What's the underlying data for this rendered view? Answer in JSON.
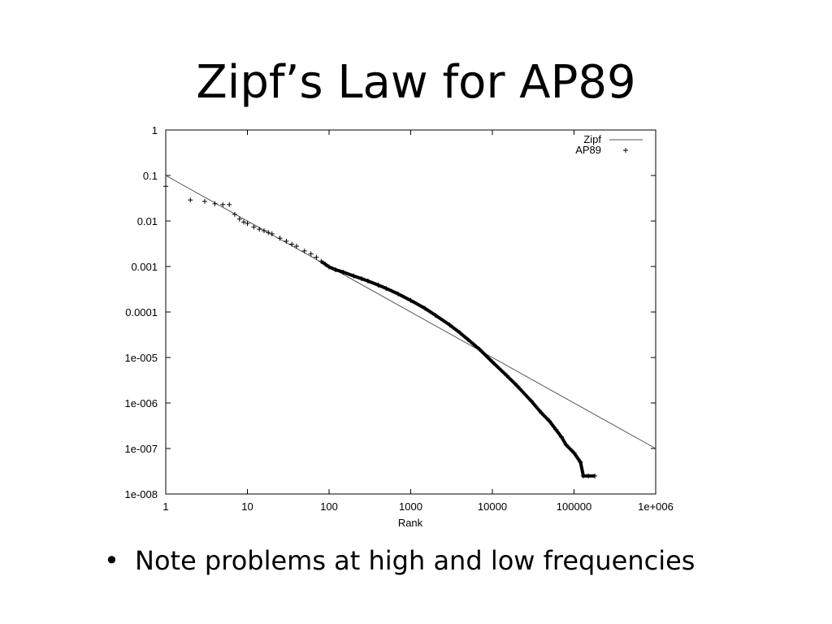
{
  "slide": {
    "title": "Zipf’s Law for AP89",
    "bullet_symbol": "•",
    "bullet_text": "Note problems at high and low frequencies"
  },
  "chart_data": {
    "type": "scatter",
    "xlabel": "Rank",
    "ylabel": "",
    "x_scale": "log",
    "y_scale": "log",
    "xlim": [
      1,
      1000000
    ],
    "ylim": [
      1e-08,
      1
    ],
    "x_ticks": [
      {
        "value": 1,
        "label": "1"
      },
      {
        "value": 10,
        "label": "10"
      },
      {
        "value": 100,
        "label": "100"
      },
      {
        "value": 1000,
        "label": "1000"
      },
      {
        "value": 10000,
        "label": "10000"
      },
      {
        "value": 100000,
        "label": "100000"
      },
      {
        "value": 1000000,
        "label": "1e+006"
      }
    ],
    "y_ticks": [
      {
        "value": 1e-08,
        "label": "1e-008"
      },
      {
        "value": 1e-07,
        "label": "1e-007"
      },
      {
        "value": 1e-06,
        "label": "1e-006"
      },
      {
        "value": 1e-05,
        "label": "1e-005"
      },
      {
        "value": 0.0001,
        "label": "0.0001"
      },
      {
        "value": 0.001,
        "label": "0.001"
      },
      {
        "value": 0.01,
        "label": "0.01"
      },
      {
        "value": 0.1,
        "label": "0.1"
      },
      {
        "value": 1,
        "label": "1"
      }
    ],
    "legend_position": "top-right",
    "series": [
      {
        "name": "Zipf",
        "style": "line",
        "color": "#555555",
        "points": [
          [
            1,
            0.1
          ],
          [
            1000000,
            1e-07
          ]
        ]
      },
      {
        "name": "AP89",
        "style": "plus",
        "color": "#000000",
        "points": [
          [
            1,
            0.058
          ],
          [
            2,
            0.029
          ],
          [
            3,
            0.027
          ],
          [
            4,
            0.024
          ],
          [
            5,
            0.023
          ],
          [
            6,
            0.023
          ],
          [
            7,
            0.014
          ],
          [
            8,
            0.011
          ],
          [
            9,
            0.0095
          ],
          [
            10,
            0.0088
          ],
          [
            12,
            0.0074
          ],
          [
            14,
            0.0066
          ],
          [
            16,
            0.0061
          ],
          [
            18,
            0.0056
          ],
          [
            20,
            0.0052
          ],
          [
            25,
            0.0042
          ],
          [
            30,
            0.0036
          ],
          [
            35,
            0.0031
          ],
          [
            40,
            0.0028
          ],
          [
            50,
            0.0022
          ],
          [
            60,
            0.0019
          ],
          [
            70,
            0.0016
          ],
          [
            80,
            0.0013
          ],
          [
            90,
            0.00112
          ],
          [
            100,
            0.00098
          ],
          [
            120,
            0.00085
          ],
          [
            150,
            0.00075
          ],
          [
            200,
            0.00062
          ],
          [
            250,
            0.00054
          ],
          [
            300,
            0.00048
          ],
          [
            400,
            0.00039
          ],
          [
            500,
            0.00033
          ],
          [
            700,
            0.00025
          ],
          [
            1000,
            0.00018
          ],
          [
            1500,
            0.00012
          ],
          [
            2000,
            8.5e-05
          ],
          [
            3000,
            5.2e-05
          ],
          [
            4000,
            3.5e-05
          ],
          [
            5000,
            2.5e-05
          ],
          [
            7000,
            1.5e-05
          ],
          [
            10000,
            8e-06
          ],
          [
            15000,
            4e-06
          ],
          [
            20000,
            2.4e-06
          ],
          [
            30000,
            1.1e-06
          ],
          [
            40000,
            6e-07
          ],
          [
            50000,
            4e-07
          ],
          [
            60000,
            2.6e-07
          ],
          [
            70000,
            1.8e-07
          ],
          [
            80000,
            1.2e-07
          ],
          [
            100000,
            8e-08
          ],
          [
            120000,
            5e-08
          ],
          [
            130000,
            2.5e-08
          ],
          [
            150000,
            2.5e-08
          ],
          [
            180000,
            2.5e-08
          ]
        ]
      }
    ]
  }
}
